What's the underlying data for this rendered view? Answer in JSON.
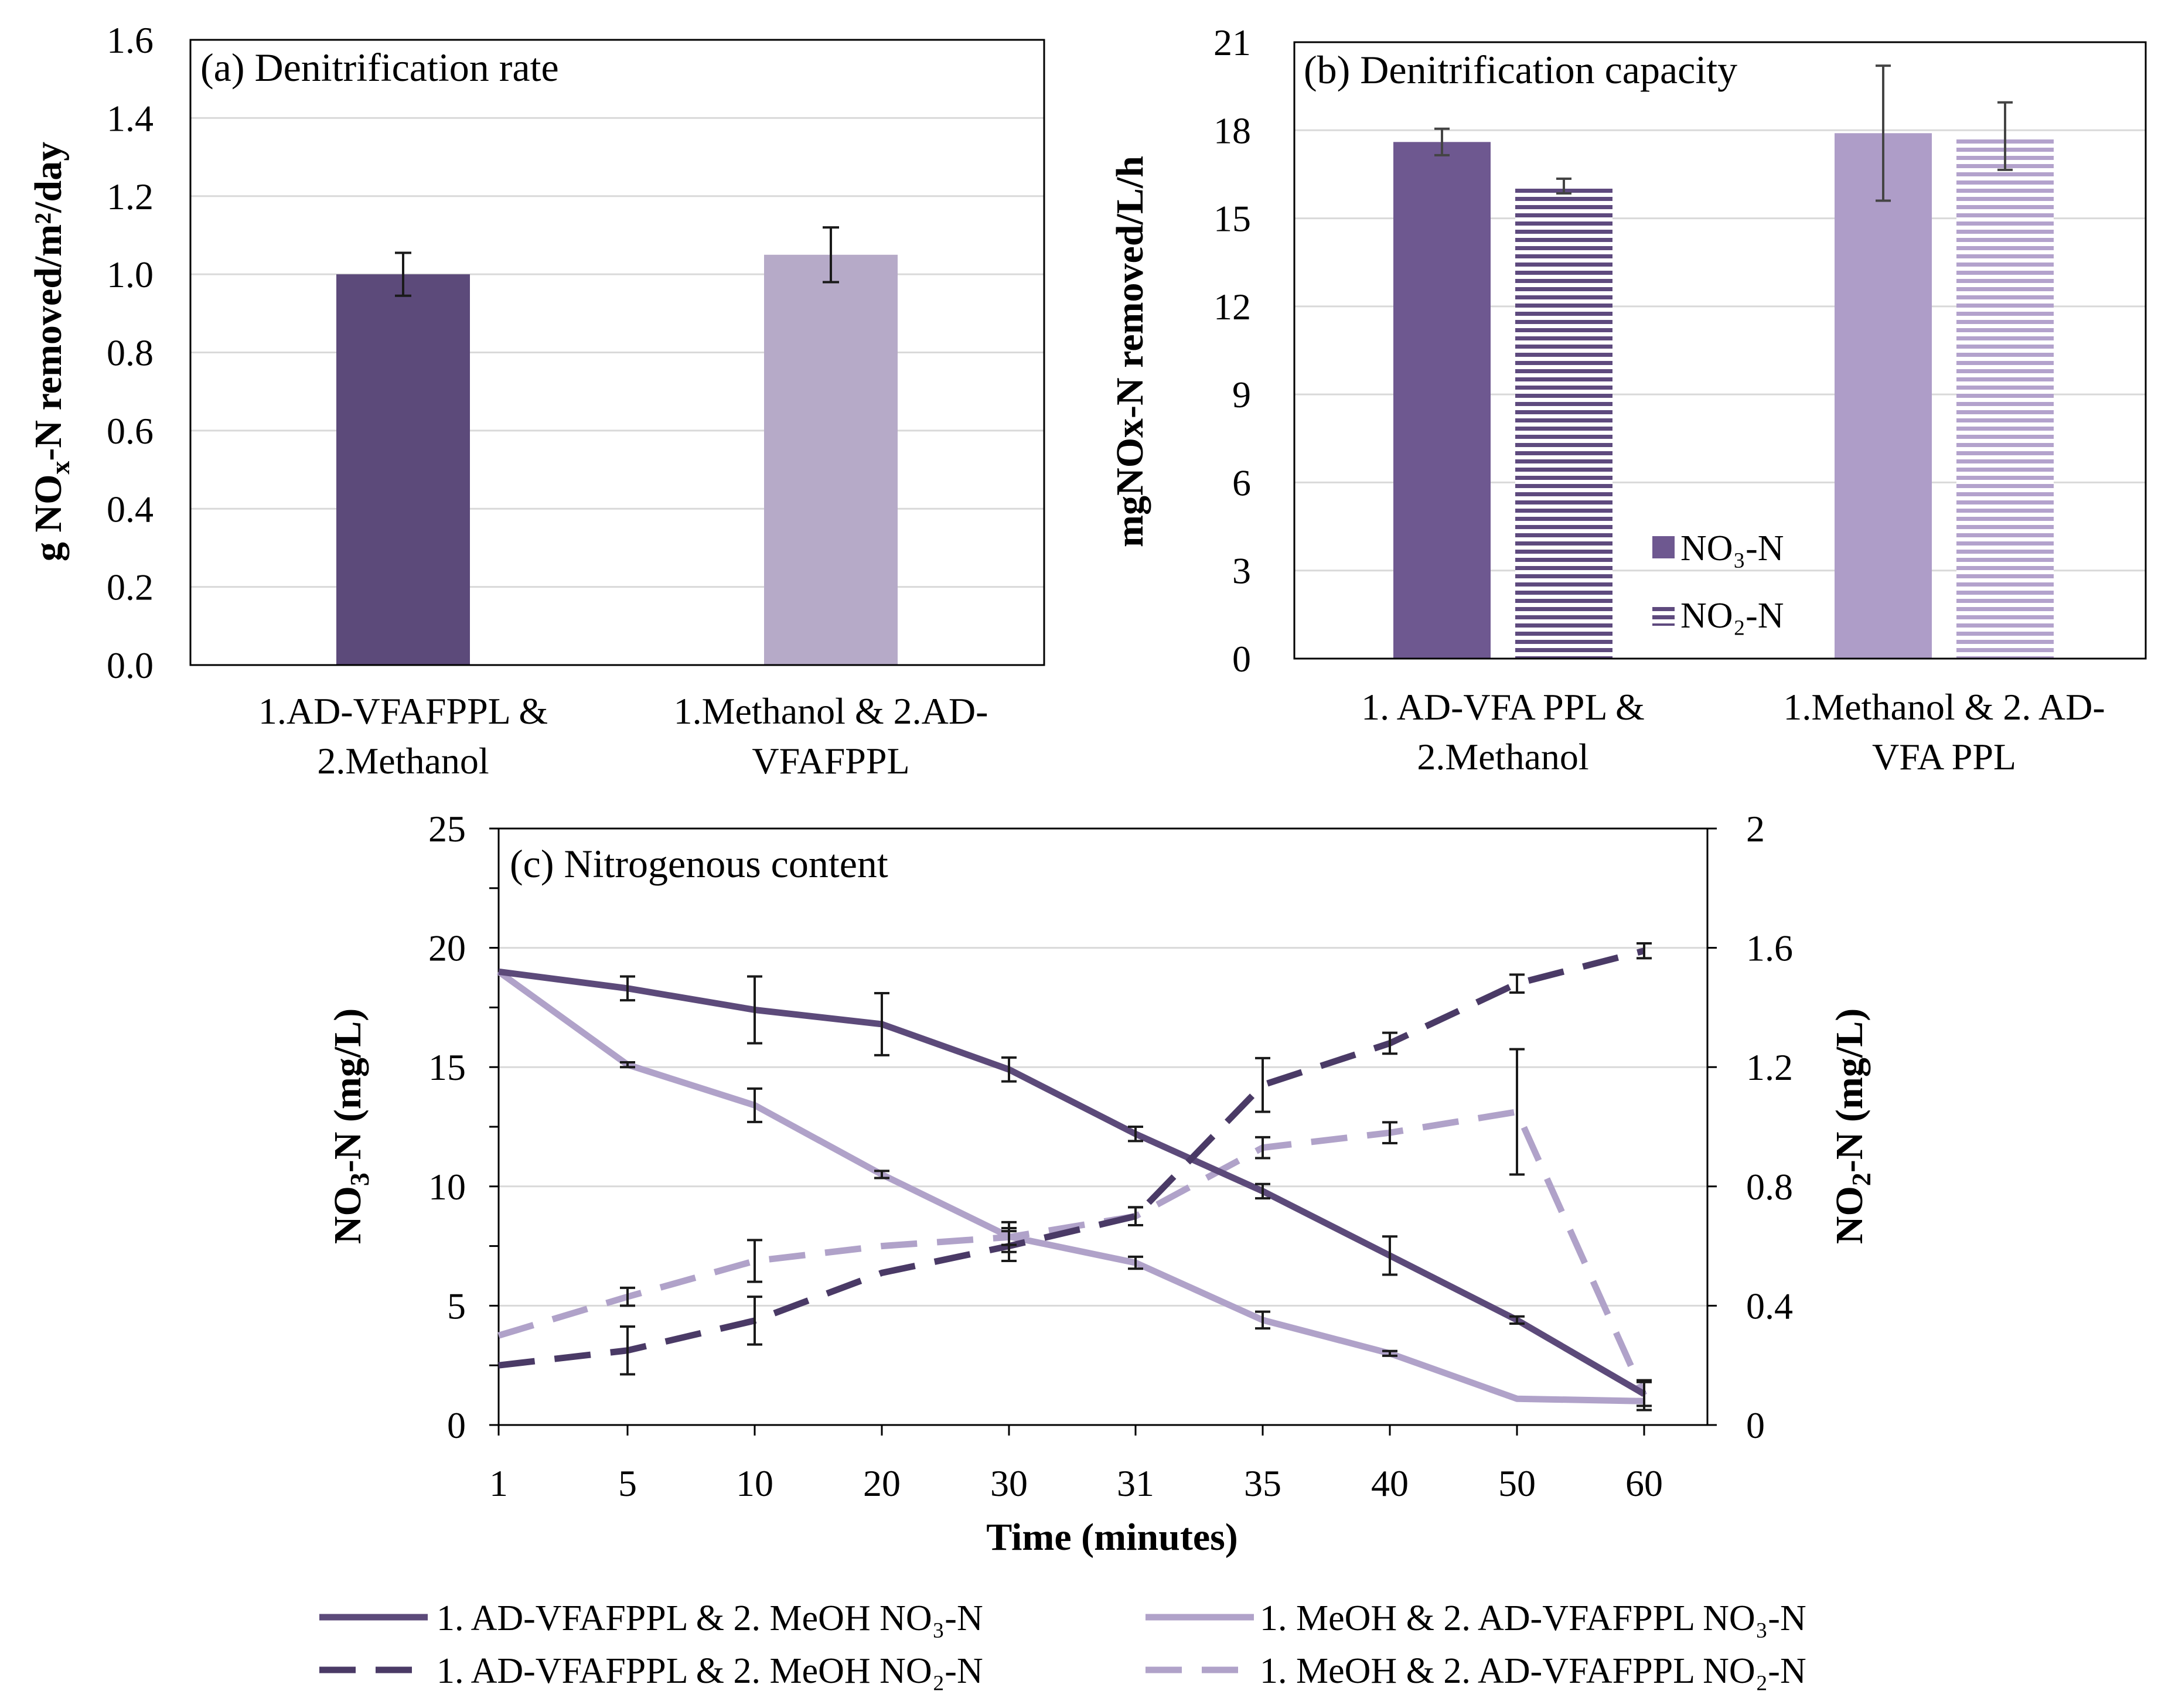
{
  "chart_data": [
    {
      "id": "a",
      "type": "bar",
      "title": "(a) Denitrification rate",
      "ylabel_parts": [
        "g NO",
        "x",
        "-N removed/m²/day"
      ],
      "ylim": [
        0,
        1.6
      ],
      "yticks": [
        "0.0",
        "0.2",
        "0.4",
        "0.6",
        "0.8",
        "1.0",
        "1.2",
        "1.4",
        "1.6"
      ],
      "categories": [
        [
          "1.AD-VFAFPPL &",
          "2.Methanol"
        ],
        [
          "1.Methanol & 2.AD-",
          "VFAFPPL"
        ]
      ],
      "values": [
        1.0,
        1.05
      ],
      "errors": [
        0.055,
        0.07
      ],
      "colors": [
        "#5c4a7a",
        "#b6aac8"
      ]
    },
    {
      "id": "b",
      "type": "bar",
      "title": "(b) Denitrification  capacity",
      "ylabel": "mgNOx-N removed/L/h",
      "ylim": [
        0,
        21
      ],
      "yticks": [
        "0",
        "3",
        "6",
        "9",
        "12",
        "15",
        "18",
        "21"
      ],
      "categories": [
        [
          "1. AD-VFA PPL &",
          "2.Methanol"
        ],
        [
          "1.Methanol & 2. AD-",
          "VFA PPL"
        ]
      ],
      "series": [
        {
          "name": "NO₃-N",
          "values": [
            17.6,
            17.9
          ],
          "errors": [
            0.45,
            2.3
          ],
          "colors": [
            "#6e5890",
            "#ae9dc8"
          ],
          "pattern": "solid"
        },
        {
          "name": "NO₂-N",
          "values": [
            16.1,
            17.8
          ],
          "errors": [
            0.25,
            1.15
          ],
          "colors": [
            "#5e4a7e",
            "#b3a2cc"
          ],
          "pattern": "horizontal-stripes"
        }
      ]
    },
    {
      "id": "c",
      "type": "line",
      "title": "(c) Nitrogenous content",
      "xlabel": "Time (minutes)",
      "x": [
        "1",
        "5",
        "10",
        "20",
        "30",
        "31",
        "35",
        "40",
        "50",
        "60"
      ],
      "ylabel_left_parts": [
        "NO",
        "3",
        "-N (mg/L)"
      ],
      "ylabel_right_parts": [
        "NO",
        "2",
        "-N (mg/L)"
      ],
      "ylim_left": [
        0,
        25
      ],
      "yticks_left": [
        "0",
        "5",
        "10",
        "15",
        "20",
        "25"
      ],
      "ylim_right": [
        0,
        2
      ],
      "yticks_right": [
        "0",
        "0.4",
        "0.8",
        "1.2",
        "1.6",
        "2"
      ],
      "series": [
        {
          "name": "1. AD-VFAFPPL & 2. MeOH NO₃-N",
          "axis": "left",
          "style": "solid",
          "color": "#5c4a7a",
          "values": [
            19.0,
            18.3,
            17.4,
            16.8,
            14.9,
            12.2,
            9.8,
            7.1,
            4.4,
            1.3
          ],
          "errors": [
            0,
            0.5,
            1.4,
            1.3,
            0.5,
            0.3,
            0.3,
            0.8,
            0.15,
            0.5
          ]
        },
        {
          "name": "1. MeOH & 2. AD-VFAFPPL NO₃-N",
          "axis": "left",
          "style": "solid",
          "color": "#b0a2c9",
          "values": [
            19.0,
            15.1,
            13.4,
            10.5,
            7.9,
            6.8,
            4.4,
            3.0,
            1.1,
            1.0
          ],
          "errors": [
            0,
            0.1,
            0.7,
            0.15,
            0.35,
            0.25,
            0.35,
            0.1,
            0,
            0
          ]
        },
        {
          "name": "1. AD-VFAFPPL & 2. MeOH NO₂-N",
          "axis": "right",
          "style": "dashed",
          "color": "#4a3a66",
          "values": [
            0.2,
            0.25,
            0.35,
            0.51,
            0.6,
            0.7,
            1.14,
            1.28,
            1.48,
            1.59
          ],
          "errors": [
            0,
            0.08,
            0.08,
            0,
            0.05,
            0.03,
            0.09,
            0.035,
            0.03,
            0.025
          ]
        },
        {
          "name": "1. MeOH & 2. AD-VFAFPPL NO₂-N",
          "axis": "right",
          "style": "dashed",
          "color": "#b0a2c9",
          "values": [
            0.3,
            0.43,
            0.55,
            0.6,
            0.63,
            0.7,
            0.93,
            0.98,
            1.05,
            0.1
          ],
          "errors": [
            0,
            0.03,
            0.07,
            0,
            0.05,
            0.03,
            0.035,
            0.035,
            0.21,
            0.05
          ]
        }
      ]
    }
  ]
}
